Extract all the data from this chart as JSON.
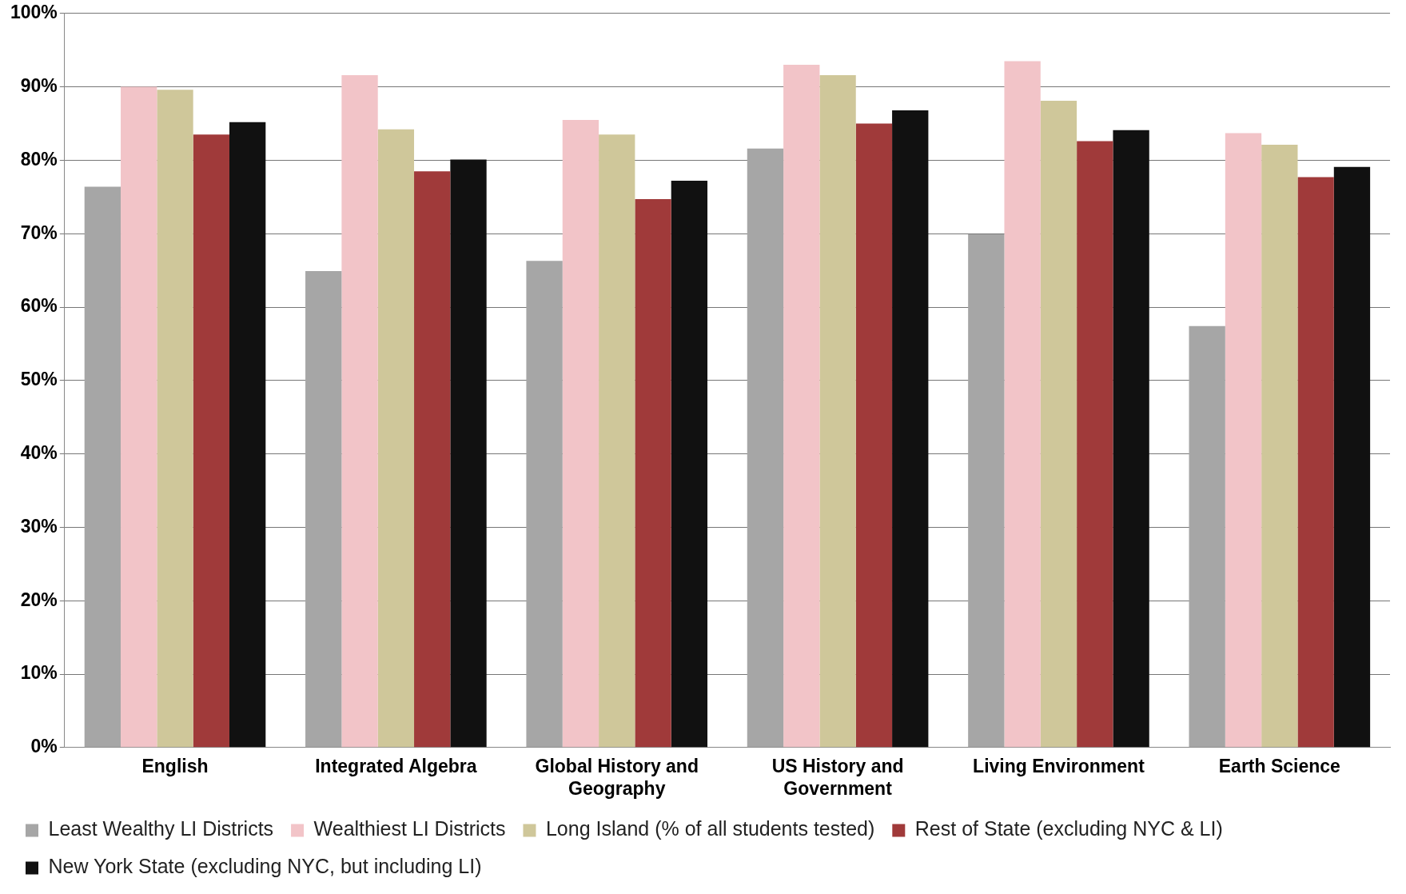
{
  "chart_data": {
    "type": "bar",
    "categories": [
      "English",
      "Integrated Algebra",
      "Global History and Geography",
      "US History and Government",
      "Living Environment",
      "Earth Science"
    ],
    "series": [
      {
        "name": "Least Wealthy LI Districts",
        "color": "#a6a6a6",
        "values": [
          76.4,
          64.9,
          66.3,
          81.6,
          69.9,
          57.4
        ]
      },
      {
        "name": "Wealthiest LI Districts",
        "color": "#f2c4c8",
        "values": [
          90.0,
          91.6,
          85.5,
          93.0,
          93.5,
          83.7
        ]
      },
      {
        "name": "Long Island (% of all students tested)",
        "color": "#cfc79a",
        "values": [
          89.6,
          84.2,
          83.5,
          91.6,
          88.1,
          82.1
        ]
      },
      {
        "name": "Rest of State (excluding NYC & LI)",
        "color": "#a03a3a",
        "values": [
          83.5,
          78.5,
          74.7,
          85.0,
          82.6,
          77.7
        ]
      },
      {
        "name": "New York State (excluding NYC, but including LI)",
        "color": "#111111",
        "values": [
          85.2,
          80.1,
          77.2,
          86.8,
          84.1,
          79.1
        ]
      }
    ],
    "ylim": [
      0,
      100
    ],
    "yticks": [
      {
        "value": 0,
        "label": "0%"
      },
      {
        "value": 10,
        "label": "10%"
      },
      {
        "value": 20,
        "label": "20%"
      },
      {
        "value": 30,
        "label": "30%"
      },
      {
        "value": 40,
        "label": "40%"
      },
      {
        "value": 50,
        "label": "50%"
      },
      {
        "value": 60,
        "label": "60%"
      },
      {
        "value": 70,
        "label": "70%"
      },
      {
        "value": 80,
        "label": "80%"
      },
      {
        "value": 90,
        "label": "90%"
      },
      {
        "value": 100,
        "label": "100%"
      }
    ],
    "grid": "y",
    "legend": "bottom"
  }
}
